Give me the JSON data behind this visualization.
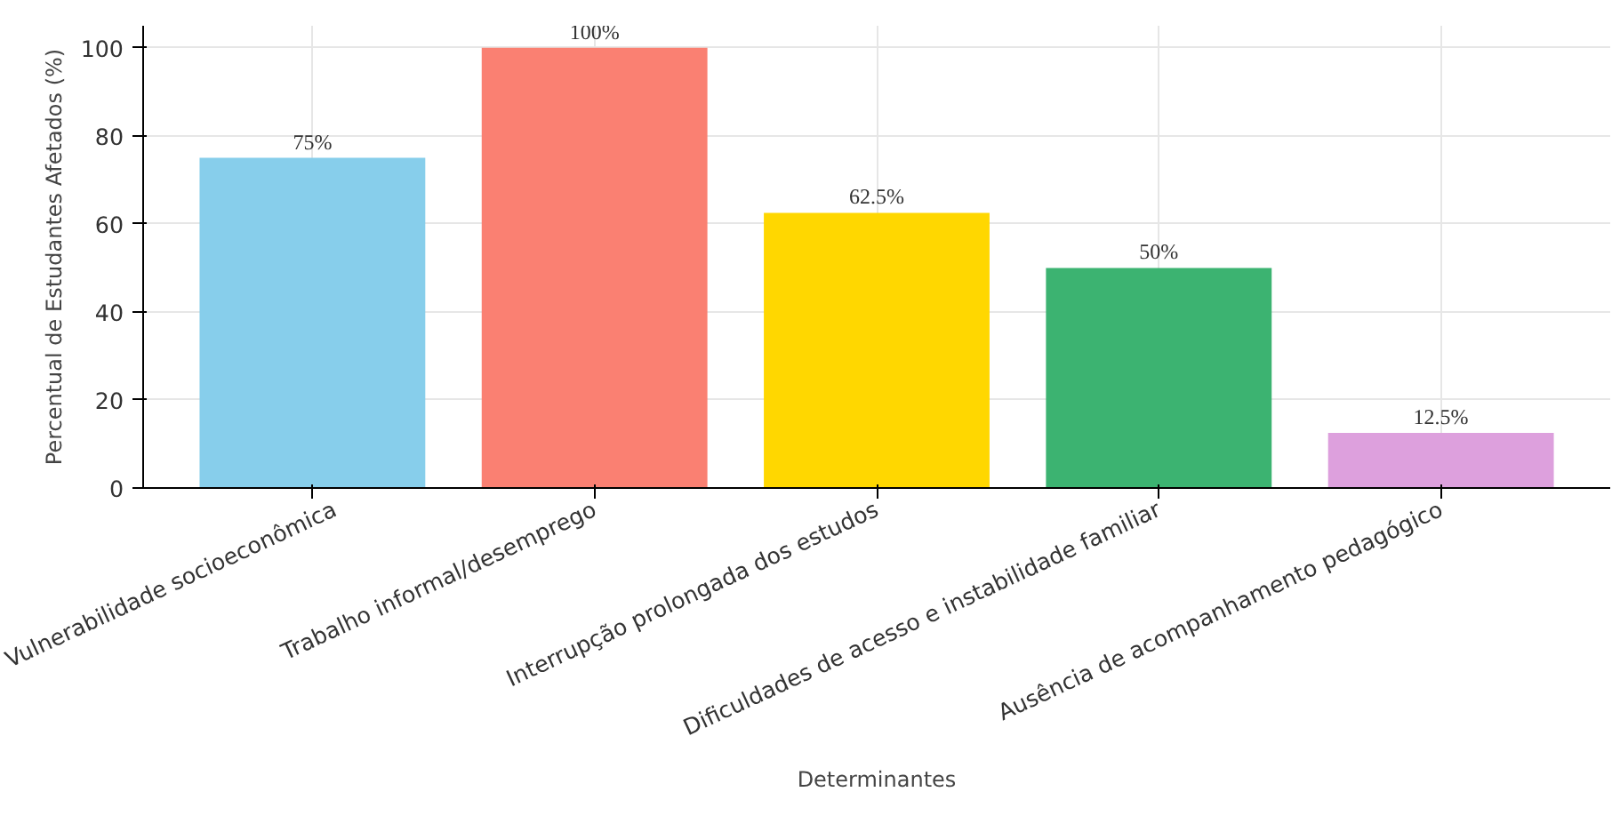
{
  "chart_data": {
    "type": "bar",
    "xlabel": "Determinantes",
    "ylabel": "Percentual de Estudantes Afetados (%)",
    "categories": [
      "Vulnerabilidade socioeconômica",
      "Trabalho informal/desemprego",
      "Interrupção prolongada dos estudos",
      "Dificuldades de acesso e instabilidade familiar",
      "Ausência de acompanhamento pedagógico"
    ],
    "values": [
      75,
      100,
      62.5,
      50,
      12.5
    ],
    "colors": [
      "#87ceeb",
      "#fa8072",
      "#ffd700",
      "#3cb371",
      "#dda0dd"
    ],
    "value_labels": [
      "75%",
      "100%",
      "62.5%",
      "50%",
      "12.5%"
    ],
    "ylim": [
      0,
      105
    ],
    "yticks": [
      0,
      20,
      40,
      60,
      80,
      100
    ],
    "grid": true
  }
}
